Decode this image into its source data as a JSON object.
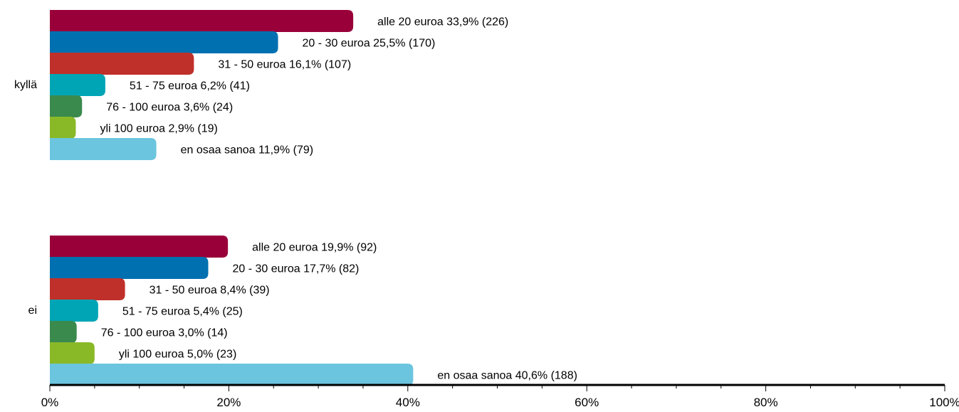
{
  "chart_data": {
    "type": "bar",
    "orientation": "horizontal",
    "xlim": [
      0,
      100
    ],
    "x_ticks": [
      "0%",
      "20%",
      "40%",
      "60%",
      "80%",
      "100%"
    ],
    "grid": false,
    "legend": "none",
    "colors": [
      "#99003a",
      "#0070b0",
      "#c0302a",
      "#00a5b5",
      "#3a8a4e",
      "#8ab928",
      "#6bc5de"
    ],
    "groups": [
      {
        "label": "kyllä",
        "bars": [
          {
            "category": "alle 20 euroa",
            "value": 33.9,
            "count": 226,
            "text": "alle 20 euroa 33,9% (226)"
          },
          {
            "category": "20 - 30 euroa",
            "value": 25.5,
            "count": 170,
            "text": "20 - 30 euroa 25,5% (170)"
          },
          {
            "category": "31 - 50 euroa",
            "value": 16.1,
            "count": 107,
            "text": "31 - 50 euroa 16,1% (107)"
          },
          {
            "category": "51 - 75 euroa",
            "value": 6.2,
            "count": 41,
            "text": "51 - 75 euroa 6,2% (41)"
          },
          {
            "category": "76 - 100 euroa",
            "value": 3.6,
            "count": 24,
            "text": "76 - 100 euroa 3,6% (24)"
          },
          {
            "category": "yli 100 euroa",
            "value": 2.9,
            "count": 19,
            "text": "yli 100 euroa 2,9% (19)"
          },
          {
            "category": "en osaa sanoa",
            "value": 11.9,
            "count": 79,
            "text": "en osaa sanoa 11,9% (79)"
          }
        ]
      },
      {
        "label": "ei",
        "bars": [
          {
            "category": "alle 20 euroa",
            "value": 19.9,
            "count": 92,
            "text": "alle 20 euroa 19,9% (92)"
          },
          {
            "category": "20 - 30 euroa",
            "value": 17.7,
            "count": 82,
            "text": "20 - 30 euroa 17,7% (82)"
          },
          {
            "category": "31 - 50 euroa",
            "value": 8.4,
            "count": 39,
            "text": "31 - 50 euroa 8,4% (39)"
          },
          {
            "category": "51 - 75 euroa",
            "value": 5.4,
            "count": 25,
            "text": "51 - 75 euroa 5,4% (25)"
          },
          {
            "category": "76 - 100 euroa",
            "value": 3.0,
            "count": 14,
            "text": "76 - 100 euroa 3,0% (14)"
          },
          {
            "category": "yli 100 euroa",
            "value": 5.0,
            "count": 23,
            "text": "yli 100 euroa 5,0% (23)"
          },
          {
            "category": "en osaa sanoa",
            "value": 40.6,
            "count": 188,
            "text": "en osaa sanoa 40,6% (188)"
          }
        ]
      }
    ]
  }
}
